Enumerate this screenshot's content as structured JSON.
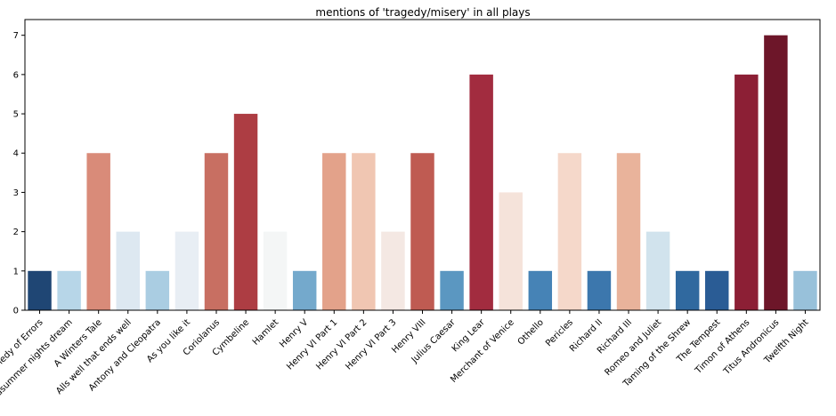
{
  "chart_data": {
    "type": "bar",
    "title": "mentions of 'tragedy/misery' in all plays",
    "xlabel": "",
    "ylabel": "",
    "ylim": [
      0,
      7.4
    ],
    "yticks": [
      0,
      1,
      2,
      3,
      4,
      5,
      6,
      7
    ],
    "grid": false,
    "categories": [
      "A Comedy of Errors",
      "A Midsummer nights dream",
      "A Winters Tale",
      "Alls well that ends well",
      "Antony and Cleopatra",
      "As you like it",
      "Coriolanus",
      "Cymbeline",
      "Hamlet",
      "Henry V",
      "Henry VI Part 1",
      "Henry VI Part 2",
      "Henry VI Part 3",
      "Henry VIII",
      "Julius Caesar",
      "King Lear",
      "Merchant of Venice",
      "Othello",
      "Pericles",
      "Richard II",
      "Richard III",
      "Romeo and Juliet",
      "Taming of the Shrew",
      "The Tempest",
      "Timon of Athens",
      "Titus Andronicus",
      "Twelfth Night"
    ],
    "values": [
      1,
      1,
      4,
      2,
      1,
      2,
      4,
      5,
      2,
      1,
      4,
      4,
      2,
      4,
      1,
      6,
      3,
      1,
      4,
      1,
      4,
      2,
      1,
      1,
      6,
      7,
      1
    ],
    "colors": [
      "#1f4674",
      "#b7d6e8",
      "#d98b79",
      "#dde8f1",
      "#aacde2",
      "#e8eef4",
      "#c86f62",
      "#ad3d43",
      "#f4f6f6",
      "#74a9cc",
      "#e3a28a",
      "#f0c6b2",
      "#f4e8e3",
      "#bf5b52",
      "#5b97c1",
      "#a22c3f",
      "#f5e3da",
      "#4683b6",
      "#f5d8ca",
      "#3c77ad",
      "#e9b39b",
      "#d1e3ed",
      "#30699f",
      "#2a5c95",
      "#8c1f35",
      "#6d1629",
      "#98c1da"
    ]
  }
}
